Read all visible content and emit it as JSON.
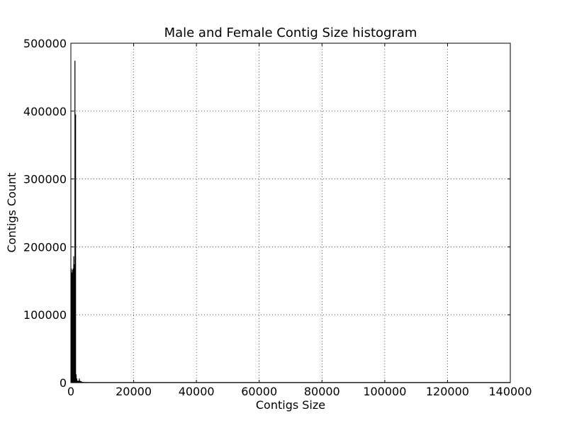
{
  "chart_data": {
    "type": "bar",
    "title": "Male and Female Contig Size histogram",
    "xlabel": "Contigs Size",
    "ylabel": "Contigs Count",
    "xlim": [
      0,
      140000
    ],
    "ylim": [
      0,
      500000
    ],
    "xticks": [
      0,
      20000,
      40000,
      60000,
      80000,
      100000,
      120000,
      140000
    ],
    "yticks": [
      0,
      100000,
      200000,
      300000,
      400000,
      500000
    ],
    "xtick_labels": [
      "0",
      "20000",
      "40000",
      "60000",
      "80000",
      "100000",
      "120000",
      "140000"
    ],
    "ytick_labels": [
      "0",
      "100000",
      "200000",
      "300000",
      "400000",
      "500000"
    ],
    "grid": true,
    "legend": null,
    "bar_color": "#000000",
    "bins": [
      {
        "x0": 0,
        "x1": 200,
        "value": 168000
      },
      {
        "x0": 200,
        "x1": 400,
        "value": 162000
      },
      {
        "x0": 400,
        "x1": 600,
        "value": 166000
      },
      {
        "x0": 600,
        "x1": 800,
        "value": 168000
      },
      {
        "x0": 800,
        "x1": 1000,
        "value": 186000
      },
      {
        "x0": 1000,
        "x1": 1200,
        "value": 174000
      },
      {
        "x0": 1200,
        "x1": 1400,
        "value": 474000
      },
      {
        "x0": 1400,
        "x1": 1600,
        "value": 395000
      },
      {
        "x0": 1600,
        "x1": 1800,
        "value": 12000
      },
      {
        "x0": 1800,
        "x1": 2000,
        "value": 6000
      },
      {
        "x0": 2000,
        "x1": 2200,
        "value": 3000
      },
      {
        "x0": 2200,
        "x1": 2400,
        "value": 2000
      },
      {
        "x0": 2400,
        "x1": 2600,
        "value": 3000
      },
      {
        "x0": 2600,
        "x1": 2800,
        "value": 6000
      },
      {
        "x0": 2800,
        "x1": 3000,
        "value": 3000
      },
      {
        "x0": 3000,
        "x1": 3200,
        "value": 2000
      },
      {
        "x0": 3200,
        "x1": 3400,
        "value": 2000
      },
      {
        "x0": 3400,
        "x1": 3600,
        "value": 1000
      },
      {
        "x0": 3600,
        "x1": 4000,
        "value": 1000
      },
      {
        "x0": 4000,
        "x1": 5000,
        "value": 700
      },
      {
        "x0": 5000,
        "x1": 6000,
        "value": 400
      },
      {
        "x0": 6000,
        "x1": 8000,
        "value": 250
      },
      {
        "x0": 8000,
        "x1": 10000,
        "value": 150
      },
      {
        "x0": 10000,
        "x1": 15000,
        "value": 100
      },
      {
        "x0": 15000,
        "x1": 20000,
        "value": 60
      },
      {
        "x0": 20000,
        "x1": 40000,
        "value": 30
      },
      {
        "x0": 40000,
        "x1": 80000,
        "value": 10
      },
      {
        "x0": 80000,
        "x1": 140000,
        "value": 5
      }
    ]
  }
}
